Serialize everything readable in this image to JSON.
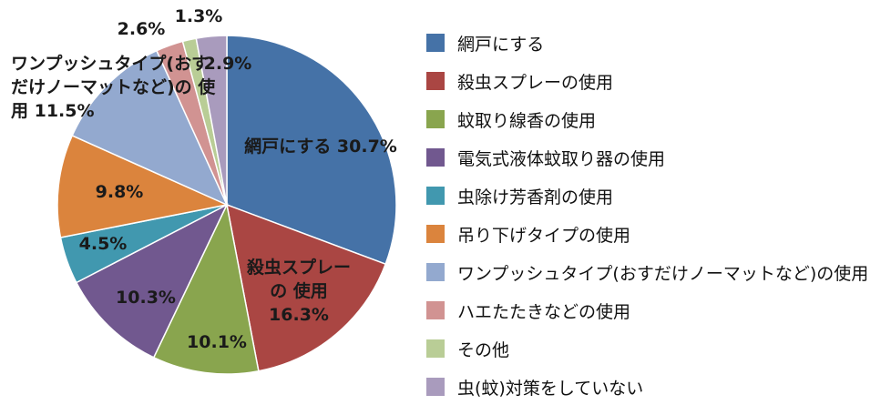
{
  "chart_data": {
    "type": "pie",
    "title": "",
    "categories": [
      "網戸にする",
      "殺虫スプレーの使用",
      "蚊取り線香の使用",
      "電気式液体蚊取り器の使用",
      "虫除け芳香剤の使用",
      "吊り下げタイプの使用",
      "ワンプッシュタイプ(おすだけノーマットなど)の使用",
      "ハエたたきなどの使用",
      "その他",
      "虫(蚊)対策をしていない"
    ],
    "values": [
      30.7,
      16.3,
      10.1,
      10.3,
      4.5,
      9.8,
      11.5,
      2.6,
      1.3,
      2.9
    ],
    "unit": "%",
    "colors": [
      "#4572A7",
      "#AA4643",
      "#89A54E",
      "#71588F",
      "#4198AF",
      "#DB843D",
      "#93A9CF",
      "#D19392",
      "#B9CD96",
      "#A99BBD"
    ],
    "data_labels": [
      [
        "網戸にする 30.7%"
      ],
      [
        "殺虫スプレー",
        "の 使用",
        "16.3%"
      ],
      [
        "10.1%"
      ],
      [
        "10.3%"
      ],
      [
        "4.5%"
      ],
      [
        "9.8%"
      ],
      [
        "ワンプッシュタイプ(おす",
        "だけノーマットなど)の 使",
        "用 11.5%"
      ],
      [
        "2.6%"
      ],
      [
        "1.3%"
      ],
      [
        "2.9%"
      ]
    ],
    "legend_position": "right",
    "start_angle_deg": 0,
    "direction": "clockwise"
  }
}
